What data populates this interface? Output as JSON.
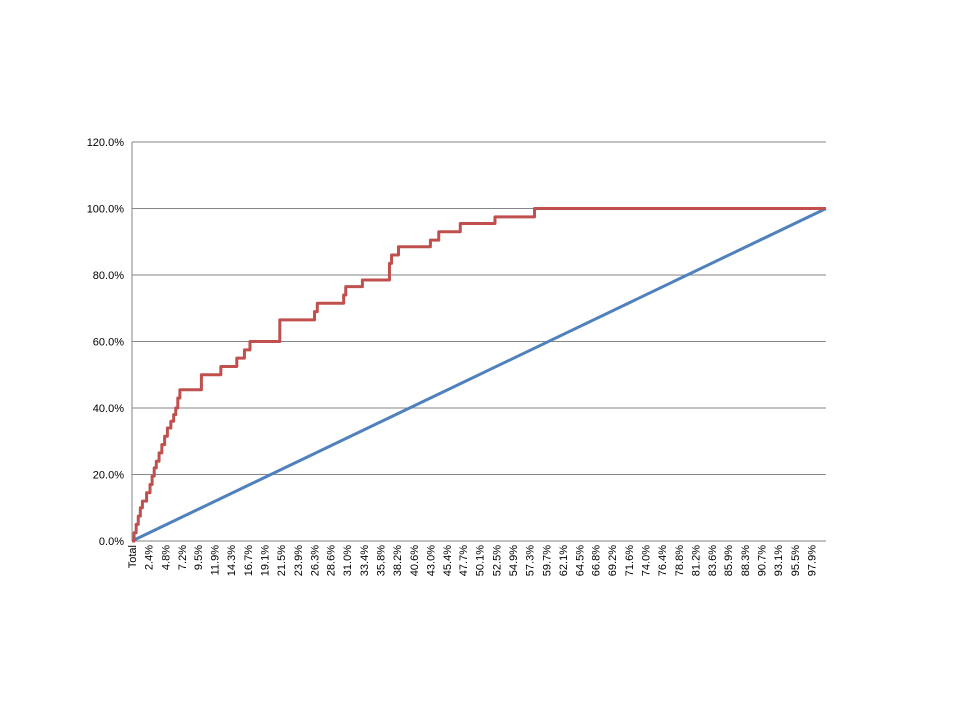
{
  "chart_data": {
    "type": "line",
    "title": "",
    "xlabel": "",
    "ylabel": "",
    "ylim": [
      0,
      120
    ],
    "y_ticks": [
      "0.0%",
      "20.0%",
      "40.0%",
      "60.0%",
      "80.0%",
      "100.0%",
      "120.0%"
    ],
    "y_tick_values": [
      0,
      20,
      40,
      60,
      80,
      100,
      120
    ],
    "grid": "horizontal",
    "legend": "none",
    "x_range": [
      0,
      100
    ],
    "x_tick_labels": [
      "Total",
      "2.4%",
      "4.8%",
      "7.2%",
      "9.5%",
      "11.9%",
      "14.3%",
      "16.7%",
      "19.1%",
      "21.5%",
      "23.9%",
      "26.3%",
      "28.6%",
      "31.0%",
      "33.4%",
      "35.8%",
      "38.2%",
      "40.6%",
      "43.0%",
      "45.4%",
      "47.7%",
      "50.1%",
      "52.5%",
      "54.9%",
      "57.3%",
      "59.7%",
      "62.1%",
      "64.5%",
      "66.8%",
      "69.2%",
      "71.6%",
      "74.0%",
      "76.4%",
      "78.8%",
      "81.2%",
      "83.6%",
      "85.9%",
      "88.3%",
      "90.7%",
      "93.1%",
      "95.5%",
      "97.9%"
    ],
    "x_tick_values": [
      0,
      2.4,
      4.8,
      7.2,
      9.5,
      11.9,
      14.3,
      16.7,
      19.1,
      21.5,
      23.9,
      26.3,
      28.6,
      31.0,
      33.4,
      35.8,
      38.2,
      40.6,
      43.0,
      45.4,
      47.7,
      50.1,
      52.5,
      54.9,
      57.3,
      59.7,
      62.1,
      64.5,
      66.8,
      69.2,
      71.6,
      74.0,
      76.4,
      78.8,
      81.2,
      83.6,
      85.9,
      88.3,
      90.7,
      93.1,
      95.5,
      97.9
    ],
    "series": [
      {
        "color": "#4f81bd",
        "x": [
          0,
          100
        ],
        "y": [
          0,
          100
        ],
        "step": false
      },
      {
        "color": "#c0504d",
        "step": true,
        "x": [
          0,
          0.3,
          0.6,
          0.9,
          1.2,
          1.5,
          2.1,
          2.6,
          2.9,
          3.2,
          3.5,
          3.9,
          4.3,
          4.7,
          5.1,
          5.6,
          6.0,
          6.3,
          6.6,
          6.9,
          7.2,
          7.5,
          7.8,
          8.1,
          8.3,
          8.7,
          10.0,
          10.3,
          11.2,
          12.8,
          13.1,
          15.1,
          16.2,
          16.8,
          17.0,
          21.3,
          21.6,
          26.3,
          26.7,
          27.1,
          30.5,
          30.8,
          31.2,
          33.2,
          37.1,
          37.4,
          38.0,
          38.4,
          43.0,
          44.2,
          47.3,
          52.3,
          58.0,
          100
        ],
        "y": [
          0,
          2.5,
          5,
          7.5,
          10,
          12,
          14.5,
          17,
          19.5,
          22,
          24,
          26.5,
          29,
          31.5,
          34,
          36,
          38,
          40,
          43,
          45.5,
          45.5,
          45.5,
          45.5,
          45.5,
          45.5,
          45.5,
          50,
          50,
          50,
          52.5,
          52.5,
          55,
          57.5,
          57.5,
          60,
          66.5,
          66.5,
          69,
          71.5,
          71.5,
          74,
          76.5,
          76.5,
          78.5,
          83.5,
          86,
          86,
          88.5,
          90.5,
          93,
          95.5,
          97.5,
          100,
          100
        ]
      }
    ]
  }
}
